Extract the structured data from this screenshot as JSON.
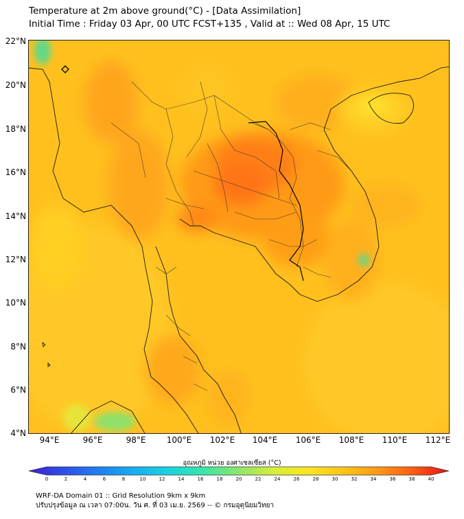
{
  "header": {
    "line1": "Temperature at 2m above ground(°C) - [Data Assimilation]",
    "line2": "Initial Time : Friday 03 Apr, 00 UTC FCST+135 , Valid at :: Wed 08 Apr, 15 UTC"
  },
  "map": {
    "lon_range": [
      93,
      112.5
    ],
    "lat_range": [
      4,
      22
    ],
    "lat_ticks": [
      "22°N",
      "20°N",
      "18°N",
      "16°N",
      "14°N",
      "12°N",
      "10°N",
      "8°N",
      "6°N",
      "4°N"
    ],
    "lon_ticks": [
      "94°E",
      "96°E",
      "98°E",
      "100°E",
      "102°E",
      "104°E",
      "106°E",
      "108°E",
      "110°E",
      "112°E"
    ]
  },
  "colorbar": {
    "label": "อุณหภูมิ หน่วย องศาเซลเซียส (°C)",
    "ticks": [
      "0",
      "2",
      "4",
      "6",
      "8",
      "10",
      "12",
      "14",
      "16",
      "18",
      "20",
      "22",
      "24",
      "26",
      "28",
      "30",
      "32",
      "34",
      "36",
      "38",
      "40"
    ],
    "colors": [
      "#3b1fd6",
      "#2f4fe8",
      "#1f7fef",
      "#17aef0",
      "#1bd3e0",
      "#39e6a8",
      "#8ee66a",
      "#d7ee3b",
      "#fbe51f",
      "#ffc319",
      "#ff9716",
      "#ff5a12",
      "#e8101a"
    ]
  },
  "footer": {
    "line1": "WRF-DA Domain 01 :: Grid Resolution 9km x 9km",
    "line2": "ปรับปรุงข้อมูล ณ เวลา 07:00น. วัน ศ. ที่ 03 เม.ย. 2569 -- © กรมอุตุนิยมวิทยา"
  }
}
